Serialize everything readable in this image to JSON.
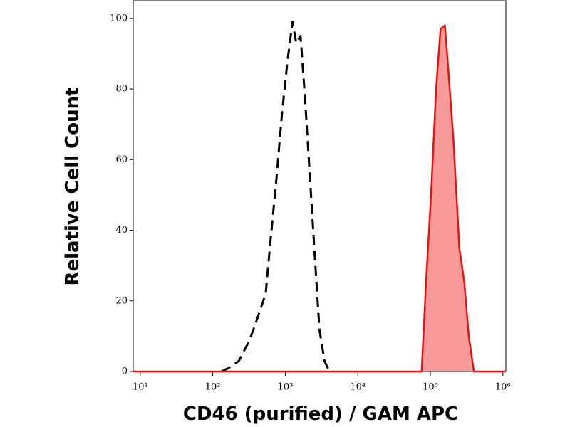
{
  "chart_data": {
    "type": "line",
    "x_label": "CD46 (purified) / GAM APC",
    "y_label": "Relative Cell Count",
    "xscale": "log",
    "xlim": [
      8,
      1100000
    ],
    "xticks": [
      {
        "value": 10,
        "label": "10¹"
      },
      {
        "value": 100,
        "label": "10²"
      },
      {
        "value": 1000,
        "label": "10³"
      },
      {
        "value": 10000,
        "label": "10⁴"
      },
      {
        "value": 100000,
        "label": "10⁵"
      },
      {
        "value": 1000000,
        "label": "10⁶"
      }
    ],
    "ylim": [
      0,
      105
    ],
    "yticks": [
      0,
      20,
      40,
      60,
      80,
      100
    ],
    "series": [
      {
        "color": "#000000",
        "style": "dashed",
        "fill": false,
        "x": [
          132,
          166,
          229,
          324,
          427,
          537,
          631,
          759,
          891,
          1072,
          1259,
          1413,
          1622,
          1862,
          2188,
          2512,
          2951,
          3467,
          4074
        ],
        "values": [
          0,
          1,
          3,
          9,
          16,
          22,
          38,
          55,
          72,
          88,
          99,
          93,
          95,
          78,
          55,
          35,
          12,
          3,
          0
        ]
      },
      {
        "color": "#e8120c",
        "style": "solid",
        "fill": true,
        "fill_color": "#f99a9a",
        "x": [
          8,
          60000,
          75858,
          87096,
          102329,
          120226,
          138038,
          158489,
          177828,
          208930,
          251189,
          295121,
          338844,
          398107,
          1100000
        ],
        "values": [
          0,
          0,
          0,
          25,
          50,
          80,
          97,
          98,
          85,
          65,
          35,
          25,
          10,
          0,
          0
        ]
      }
    ]
  }
}
